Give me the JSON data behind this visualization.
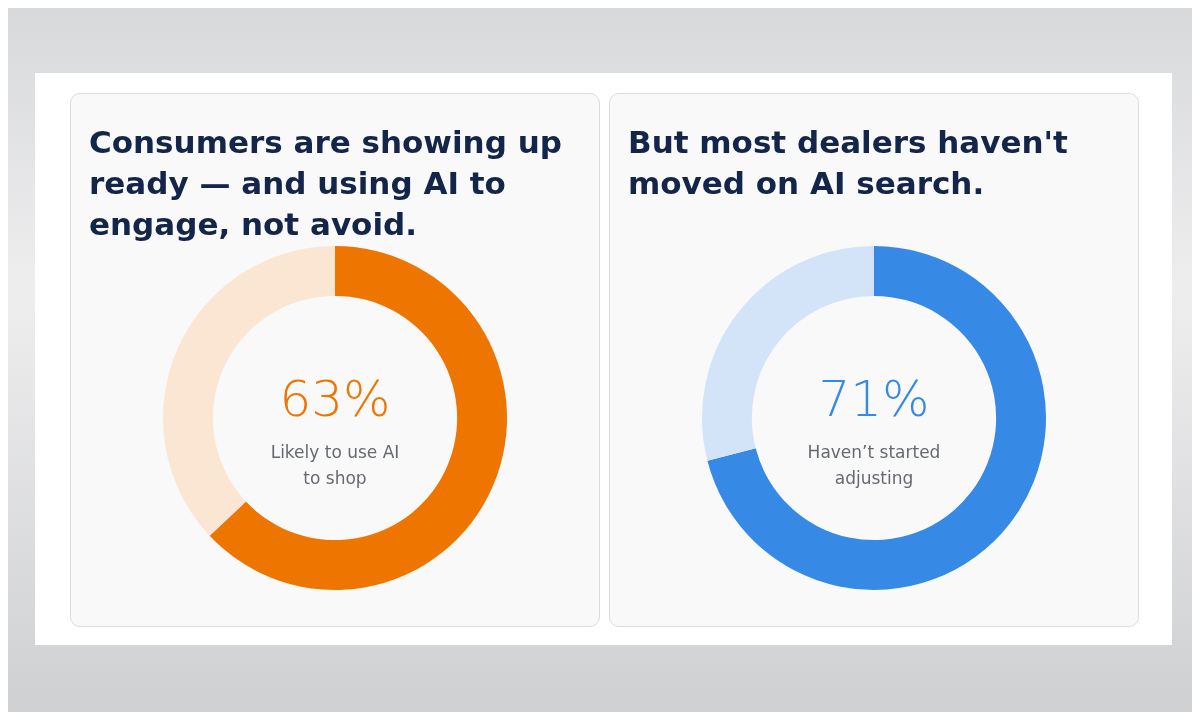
{
  "chart_data": [
    {
      "type": "donut",
      "title": "Consumers are showing up ready — and using AI to engage, not avoid.",
      "categories": [
        "Likely to use AI to shop",
        null
      ],
      "values": [
        63,
        37
      ],
      "colors": [
        "#ee7500",
        "#fae6d3"
      ],
      "value_labels": [
        "63%",
        null
      ]
    },
    {
      "type": "donut",
      "title": "But most dealers haven't moved on AI search.",
      "categories": [
        "Haven’t started adjusting",
        null
      ],
      "values": [
        71,
        29
      ],
      "colors": [
        "#3789e6",
        "#d3e4f8"
      ],
      "value_labels": [
        "71%",
        null
      ]
    }
  ]
}
